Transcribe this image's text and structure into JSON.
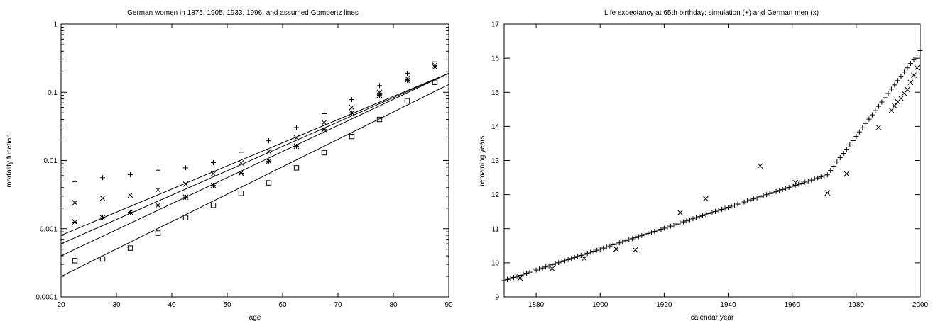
{
  "chart_data": [
    {
      "type": "scatter",
      "title": "German women in 1875, 1905, 1933, 1996, and assumed Gompertz lines",
      "xlabel": "age",
      "ylabel": "mortality function",
      "xlim": [
        20,
        90
      ],
      "ylim": [
        0.0001,
        1
      ],
      "yscale": "log",
      "grid": false,
      "x_ticks": [
        20,
        30,
        40,
        50,
        60,
        70,
        80,
        90
      ],
      "x_tick_labels": [
        "20",
        "30",
        "40",
        "50",
        "60",
        "70",
        "80",
        "90"
      ],
      "y_ticks": [
        0.0001,
        0.001,
        0.01,
        0.1,
        1
      ],
      "y_tick_labels": [
        "0.0001",
        "0.001",
        "0.01",
        "0.1",
        "1"
      ],
      "x": [
        22.5,
        27.5,
        32.5,
        37.5,
        42.5,
        47.5,
        52.5,
        57.5,
        62.5,
        67.5,
        72.5,
        77.5,
        82.5,
        87.5
      ],
      "series": [
        {
          "marker": "plus",
          "values": [
            0.0049,
            0.0056,
            0.0062,
            0.0072,
            0.0078,
            0.0093,
            0.0132,
            0.0195,
            0.0305,
            0.0485,
            0.078,
            0.125,
            0.19,
            0.28
          ]
        },
        {
          "marker": "cross",
          "values": [
            0.0024,
            0.0028,
            0.0031,
            0.0037,
            0.0045,
            0.0064,
            0.0092,
            0.0136,
            0.0215,
            0.036,
            0.06,
            0.1,
            0.16,
            0.25
          ]
        },
        {
          "marker": "star",
          "values": [
            0.00125,
            0.00145,
            0.00175,
            0.0022,
            0.0029,
            0.0043,
            0.0065,
            0.0098,
            0.0162,
            0.0285,
            0.05,
            0.09,
            0.15,
            0.235
          ]
        },
        {
          "marker": "square",
          "values": [
            0.00034,
            0.00036,
            0.00052,
            0.00086,
            0.00145,
            0.0022,
            0.0033,
            0.0047,
            0.0078,
            0.013,
            0.0225,
            0.04,
            0.075,
            0.14
          ]
        }
      ],
      "lines": [
        {
          "x": [
            20,
            90
          ],
          "y": [
            0.0008,
            0.19
          ]
        },
        {
          "x": [
            20,
            90
          ],
          "y": [
            0.0006,
            0.19
          ]
        },
        {
          "x": [
            20,
            90
          ],
          "y": [
            0.0004,
            0.19
          ]
        },
        {
          "x": [
            20,
            90
          ],
          "y": [
            0.0002,
            0.13
          ]
        }
      ]
    },
    {
      "type": "scatter",
      "title": "Life expectancy at 65th birthday: simulation (+) and German men (x)",
      "xlabel": "calendar year",
      "ylabel": "remaining years",
      "xlim": [
        1870,
        2000
      ],
      "ylim": [
        9,
        17
      ],
      "grid": false,
      "x_ticks": [
        1880,
        1900,
        1920,
        1940,
        1960,
        1980,
        2000
      ],
      "x_tick_labels": [
        "1880",
        "1900",
        "1920",
        "1940",
        "1960",
        "1980",
        "2000"
      ],
      "y_ticks": [
        9,
        10,
        11,
        12,
        13,
        14,
        15,
        16,
        17
      ],
      "y_tick_labels": [
        "9",
        "10",
        "11",
        "12",
        "13",
        "14",
        "15",
        "16",
        "17"
      ],
      "simulation": {
        "marker": "plus",
        "step": 1,
        "segments": [
          {
            "from": [
              1870,
              9.48
            ],
            "to": [
              1971,
              12.58
            ]
          },
          {
            "from": [
              1971,
              12.58
            ],
            "to": [
              2000,
              16.22
            ]
          }
        ]
      },
      "german_men": {
        "marker": "cross",
        "x": [
          1875,
          1885,
          1895,
          1905,
          1911,
          1925,
          1933,
          1950,
          1961,
          1971,
          1977,
          1987,
          1991,
          1992,
          1993,
          1994,
          1995,
          1996,
          1997,
          1998,
          1999
        ],
        "y": [
          9.55,
          9.83,
          10.13,
          10.4,
          10.38,
          11.47,
          11.88,
          12.84,
          12.35,
          12.05,
          12.61,
          13.97,
          14.47,
          14.6,
          14.72,
          14.82,
          14.97,
          15.08,
          15.29,
          15.5,
          15.72
        ]
      }
    }
  ]
}
